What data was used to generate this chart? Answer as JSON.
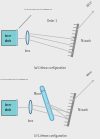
{
  "bg_color": "#ebebeb",
  "top_label": "(a) Littrow configuration",
  "bottom_label": "(ii) Littman configuration",
  "laser_color": "#7ecfd4",
  "laser_edge": "#555555",
  "lens_face": "#cce8ee",
  "lens_edge": "#336688",
  "grating_color": "#888888",
  "beam_color": "#bbbbbb",
  "ar_color": "#99ccdd",
  "mirror_color": "#5599bb",
  "text_color": "#444444",
  "label_color": "#333333"
}
